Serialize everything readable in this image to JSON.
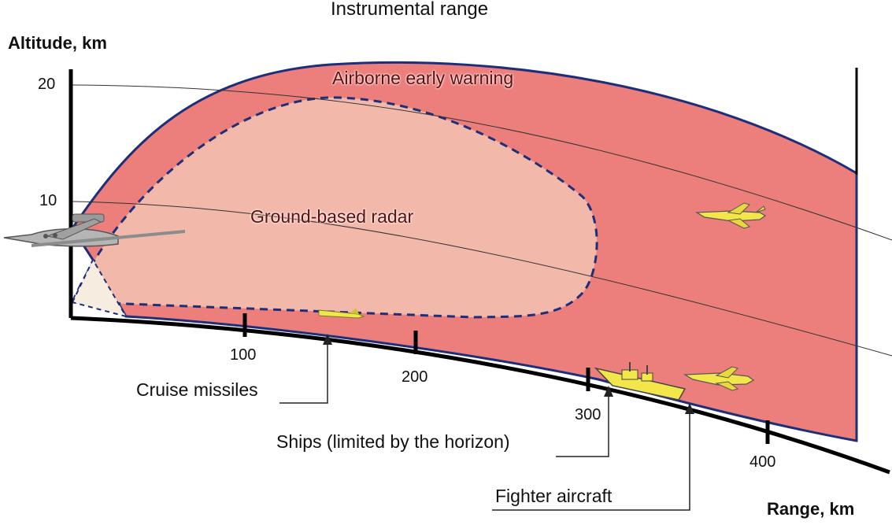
{
  "title": "Instrumental range",
  "y_axis": {
    "label": "Altitude, km",
    "ticks": [
      "20",
      "10"
    ]
  },
  "x_axis": {
    "label": "Range, km",
    "ticks": [
      "100",
      "200",
      "300",
      "400"
    ]
  },
  "regions": {
    "outer": "Airborne early warning",
    "inner": "Ground-based radar"
  },
  "callouts": {
    "missiles": "Cruise missiles",
    "ships": "Ships (limited by the horizon)",
    "fighters": "Fighter aircraft"
  },
  "colors": {
    "outer_fill": "#ec7e7c",
    "inner_fill": "#f2b8aa",
    "border": "#1d2f7a",
    "ground": "#000000",
    "target_yellow": "#f3e64a"
  },
  "icons": [
    "aew-aircraft-icon",
    "cruise-missile-icon",
    "fighter-jet-icon",
    "warship-icon"
  ]
}
